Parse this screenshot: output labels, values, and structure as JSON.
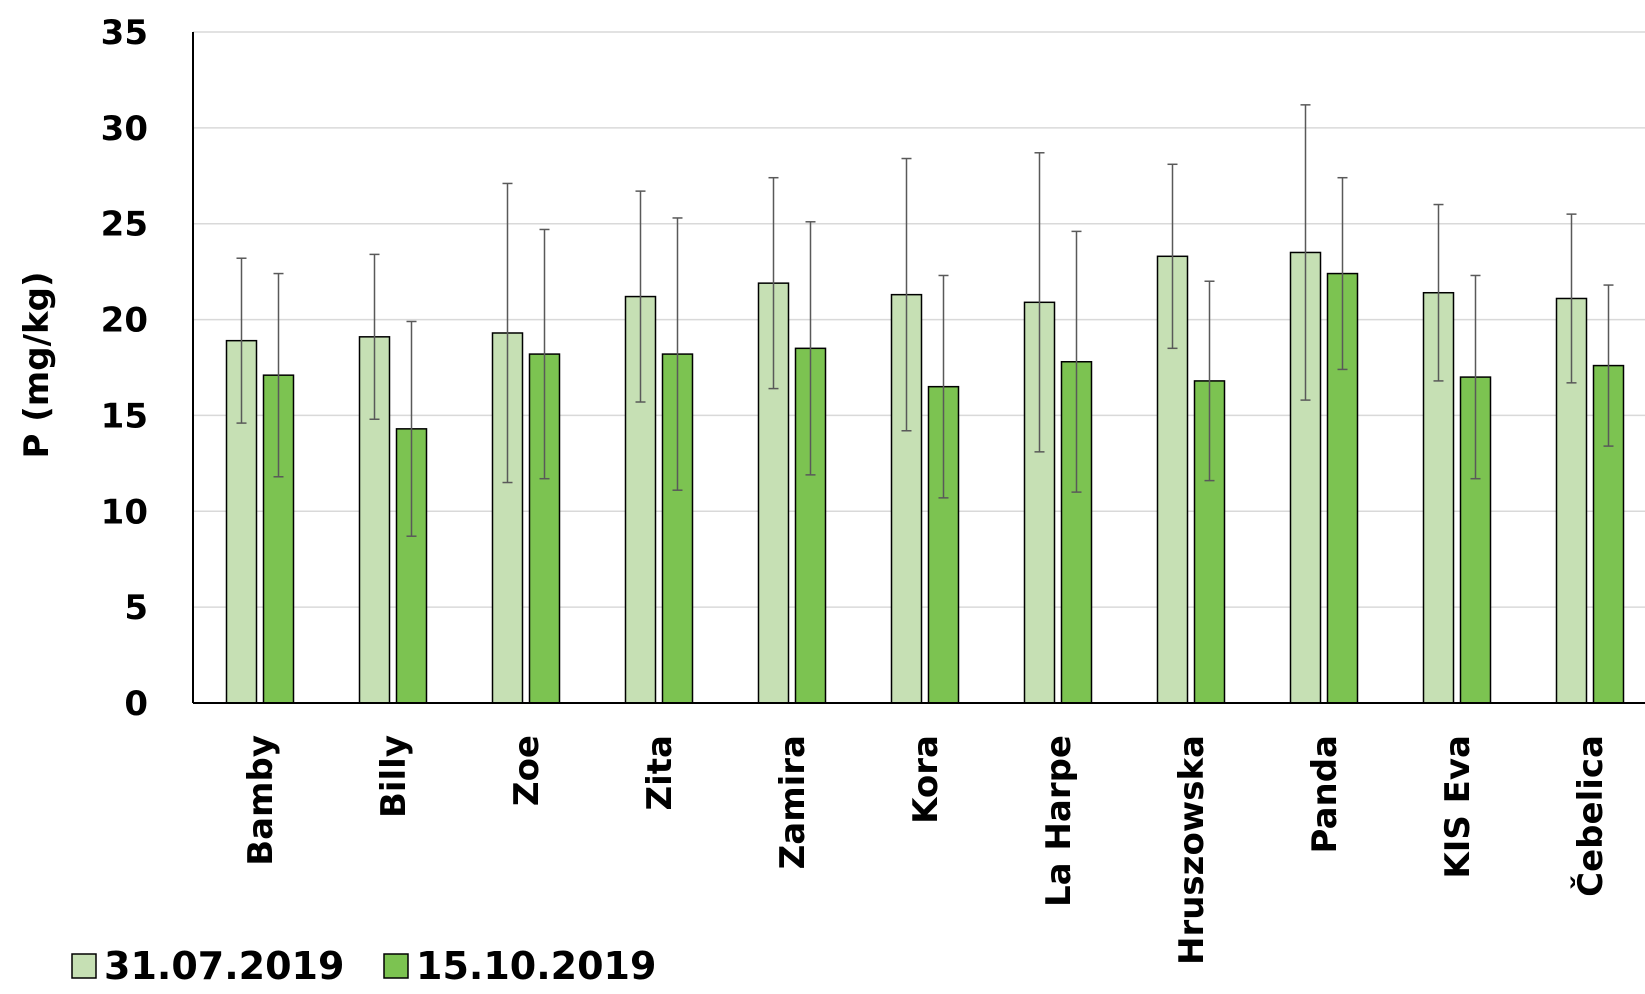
{
  "chart_data": {
    "type": "bar",
    "ylabel": "P (mg/kg)",
    "xlabel": "",
    "ylim": [
      0,
      35
    ],
    "yticks": [
      0,
      5,
      10,
      15,
      20,
      25,
      30,
      35
    ],
    "grid": true,
    "legend_position": "bottom-left",
    "categories": [
      "Bamby",
      "Billy",
      "Zoe",
      "Zita",
      "Zamira",
      "Kora",
      "La Harpe",
      "Hruszowska",
      "Panda",
      "KIS Eva",
      "Čebelica"
    ],
    "series": [
      {
        "name": "31.07.2019",
        "color": "#c6e0b4",
        "values": [
          18.9,
          19.1,
          19.3,
          21.2,
          21.9,
          21.3,
          20.9,
          23.3,
          23.5,
          21.4,
          21.1
        ],
        "error": [
          4.3,
          4.3,
          7.8,
          5.5,
          5.5,
          7.1,
          7.8,
          4.8,
          7.7,
          4.6,
          4.4
        ]
      },
      {
        "name": "15.10.2019",
        "color": "#7cc351",
        "values": [
          17.1,
          14.3,
          18.2,
          18.2,
          18.5,
          16.5,
          17.8,
          16.8,
          22.4,
          17.0,
          17.6
        ],
        "error": [
          5.3,
          5.6,
          6.5,
          7.1,
          6.6,
          5.8,
          6.8,
          5.2,
          5.0,
          5.3,
          4.2
        ]
      }
    ]
  }
}
